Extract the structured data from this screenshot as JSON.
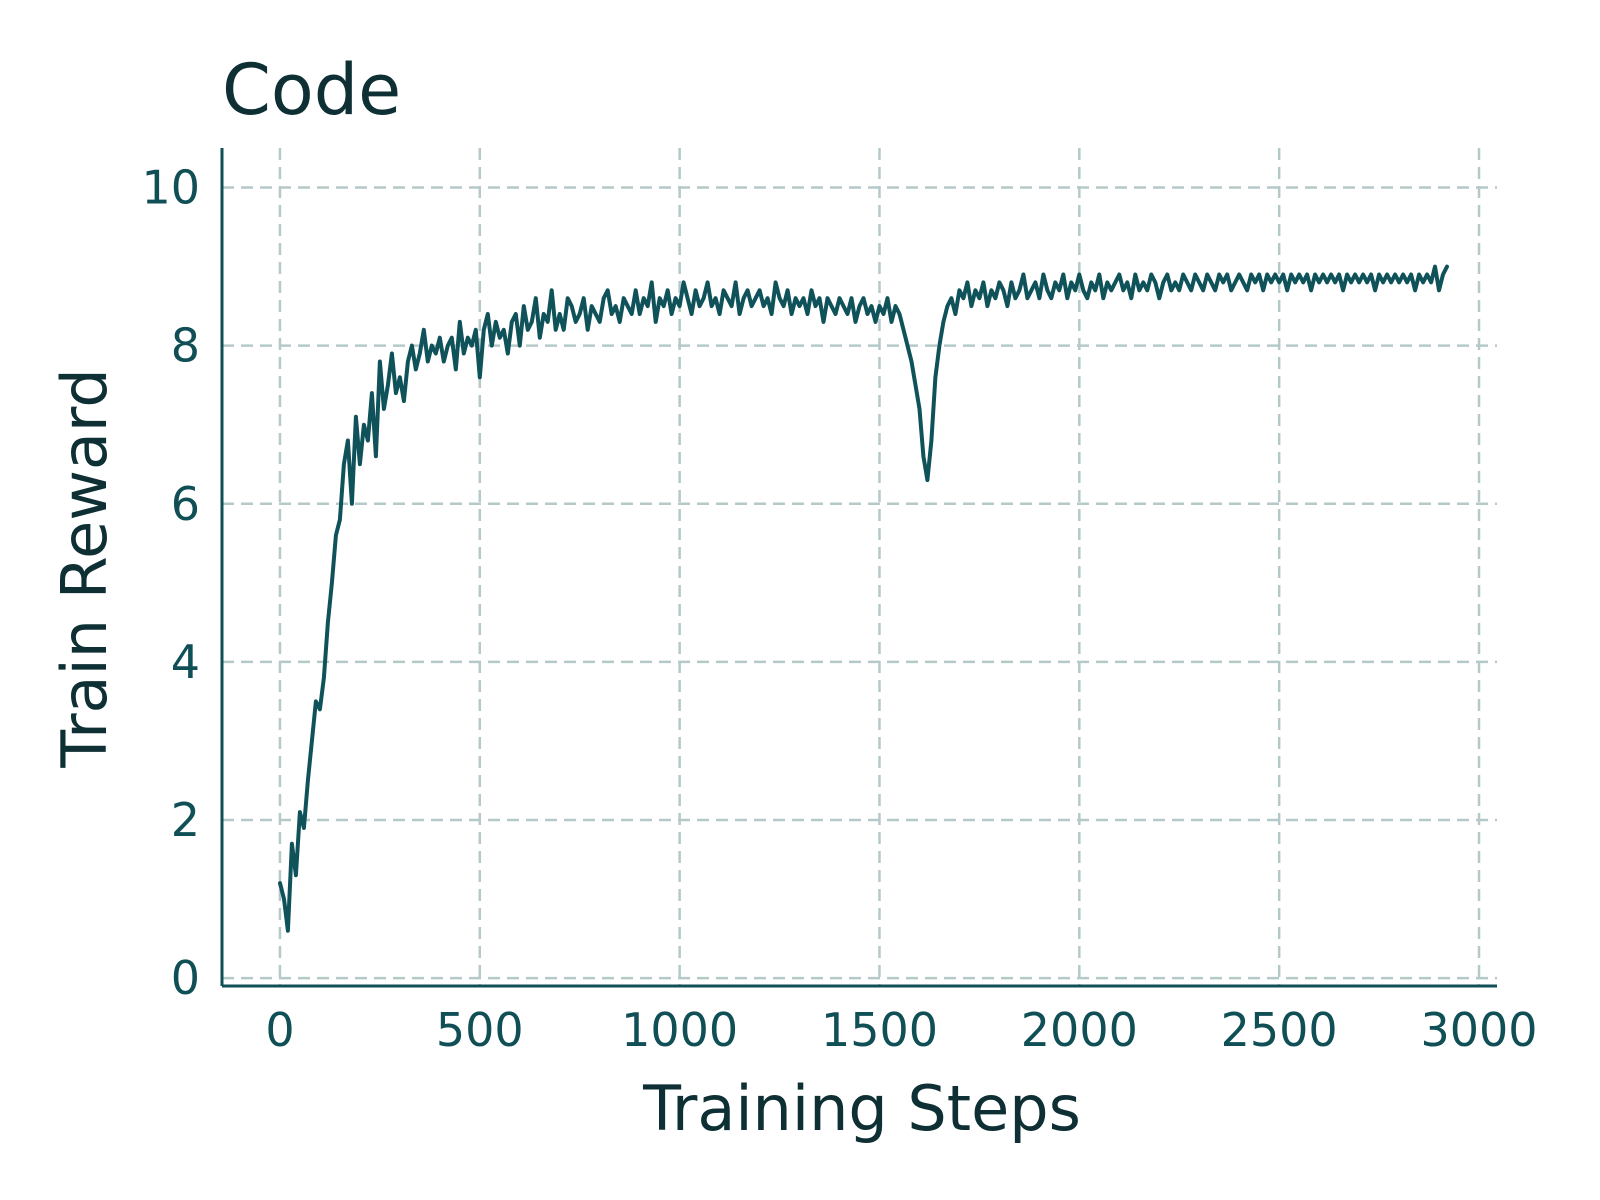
{
  "chart_data": {
    "type": "line",
    "title": "Code",
    "xlabel": "Training Steps",
    "ylabel": "Train Reward",
    "xlim": [
      -145,
      3045
    ],
    "ylim": [
      -0.1,
      10.5
    ],
    "xticks": [
      0,
      500,
      1000,
      1500,
      2000,
      2500,
      3000
    ],
    "yticks": [
      0,
      2,
      4,
      6,
      8,
      10
    ],
    "grid": true,
    "legend": "none",
    "colors": {
      "line": "#10525a",
      "axis": "#0f4f55",
      "grid": "#b5c9c9",
      "text": "#0e2f33"
    },
    "series": [
      {
        "color": "#10525a",
        "x_start": 0,
        "x_step": 10,
        "values": [
          1.2,
          1.0,
          0.6,
          1.7,
          1.3,
          2.1,
          1.9,
          2.5,
          3.0,
          3.5,
          3.4,
          3.8,
          4.5,
          5.0,
          5.6,
          5.8,
          6.5,
          6.8,
          6.0,
          7.1,
          6.5,
          7.0,
          6.8,
          7.4,
          6.6,
          7.8,
          7.2,
          7.5,
          7.9,
          7.4,
          7.6,
          7.3,
          7.8,
          8.0,
          7.7,
          7.9,
          8.2,
          7.8,
          8.0,
          7.9,
          8.1,
          7.8,
          8.0,
          8.1,
          7.7,
          8.3,
          7.9,
          8.1,
          8.0,
          8.2,
          7.6,
          8.2,
          8.4,
          8.0,
          8.3,
          8.1,
          8.2,
          7.9,
          8.3,
          8.4,
          8.0,
          8.5,
          8.2,
          8.3,
          8.6,
          8.1,
          8.4,
          8.3,
          8.7,
          8.2,
          8.4,
          8.2,
          8.6,
          8.5,
          8.3,
          8.4,
          8.6,
          8.2,
          8.5,
          8.4,
          8.3,
          8.6,
          8.7,
          8.4,
          8.5,
          8.3,
          8.6,
          8.5,
          8.4,
          8.7,
          8.4,
          8.6,
          8.5,
          8.8,
          8.3,
          8.6,
          8.5,
          8.7,
          8.4,
          8.6,
          8.5,
          8.8,
          8.6,
          8.4,
          8.7,
          8.5,
          8.6,
          8.8,
          8.5,
          8.6,
          8.4,
          8.7,
          8.6,
          8.5,
          8.8,
          8.4,
          8.6,
          8.7,
          8.5,
          8.6,
          8.7,
          8.5,
          8.6,
          8.4,
          8.8,
          8.6,
          8.5,
          8.7,
          8.4,
          8.6,
          8.5,
          8.6,
          8.4,
          8.7,
          8.5,
          8.6,
          8.3,
          8.6,
          8.5,
          8.4,
          8.6,
          8.5,
          8.4,
          8.6,
          8.3,
          8.5,
          8.6,
          8.4,
          8.5,
          8.3,
          8.5,
          8.4,
          8.6,
          8.3,
          8.5,
          8.4,
          8.2,
          8.0,
          7.8,
          7.5,
          7.2,
          6.6,
          6.3,
          6.8,
          7.6,
          8.0,
          8.3,
          8.5,
          8.6,
          8.4,
          8.7,
          8.6,
          8.8,
          8.5,
          8.7,
          8.6,
          8.8,
          8.5,
          8.7,
          8.6,
          8.8,
          8.7,
          8.5,
          8.8,
          8.6,
          8.7,
          8.9,
          8.6,
          8.7,
          8.8,
          8.6,
          8.9,
          8.7,
          8.6,
          8.8,
          8.7,
          8.9,
          8.6,
          8.8,
          8.7,
          8.9,
          8.7,
          8.6,
          8.8,
          8.7,
          8.9,
          8.6,
          8.8,
          8.7,
          8.8,
          8.9,
          8.7,
          8.8,
          8.6,
          8.9,
          8.7,
          8.8,
          8.7,
          8.9,
          8.8,
          8.6,
          8.8,
          8.9,
          8.7,
          8.8,
          8.7,
          8.9,
          8.8,
          8.7,
          8.9,
          8.8,
          8.7,
          8.9,
          8.8,
          8.7,
          8.9,
          8.8,
          8.9,
          8.7,
          8.8,
          8.9,
          8.8,
          8.7,
          8.9,
          8.8,
          8.9,
          8.7,
          8.9,
          8.8,
          8.9,
          8.8,
          8.9,
          8.7,
          8.9,
          8.8,
          8.9,
          8.8,
          8.9,
          8.7,
          8.9,
          8.8,
          8.9,
          8.8,
          8.9,
          8.8,
          8.9,
          8.7,
          8.9,
          8.8,
          8.9,
          8.8,
          8.9,
          8.8,
          8.9,
          8.7,
          8.9,
          8.8,
          8.9,
          8.8,
          8.9,
          8.8,
          8.9,
          8.8,
          8.9,
          8.7,
          8.9,
          8.8,
          8.9,
          8.8,
          9.0,
          8.7,
          8.9,
          9.0
        ]
      }
    ]
  }
}
